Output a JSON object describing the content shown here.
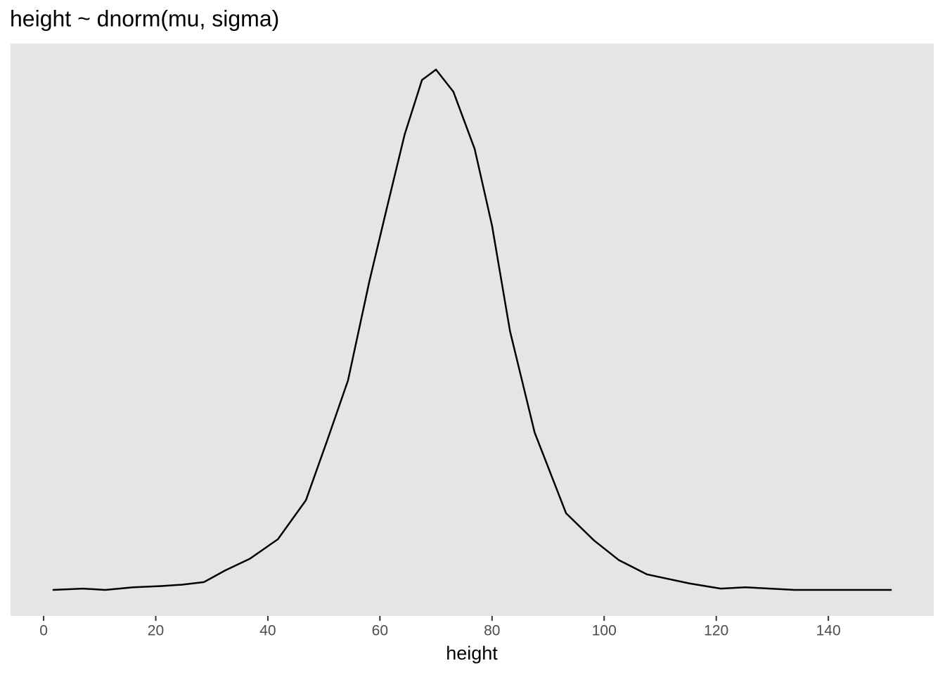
{
  "chart_data": {
    "type": "density",
    "title": "height ~ dnorm(mu, sigma)",
    "x_label": "height",
    "x": [
      1.6,
      7,
      11,
      16,
      21,
      24.6,
      28.6,
      32.4,
      36.8,
      41.8,
      46.8,
      50.6,
      54.3,
      58.1,
      61.2,
      64.4,
      67.5,
      70,
      73.1,
      76.9,
      80,
      83.2,
      87.6,
      93.2,
      98.2,
      102.6,
      107.6,
      115.2,
      120.8,
      125.2,
      134,
      140.3,
      151.3
    ],
    "values": [
      0,
      0.0001,
      0,
      0.0002,
      0.0003,
      0.0004,
      0.0006,
      0.0015,
      0.0024,
      0.0039,
      0.0069,
      0.0115,
      0.0161,
      0.0237,
      0.0293,
      0.035,
      0.0392,
      0.04,
      0.0383,
      0.0339,
      0.028,
      0.0199,
      0.0121,
      0.0059,
      0.0038,
      0.0023,
      0.0012,
      0.0005,
      0.0001,
      0.0002,
      0,
      0,
      0
    ],
    "color": "#000000",
    "xlim": [
      -5.9,
      158.8
    ],
    "xticks": [
      0,
      20,
      40,
      60,
      80,
      100,
      120,
      140
    ],
    "ylim": [
      -0.002,
      0.042
    ],
    "grid": false
  }
}
